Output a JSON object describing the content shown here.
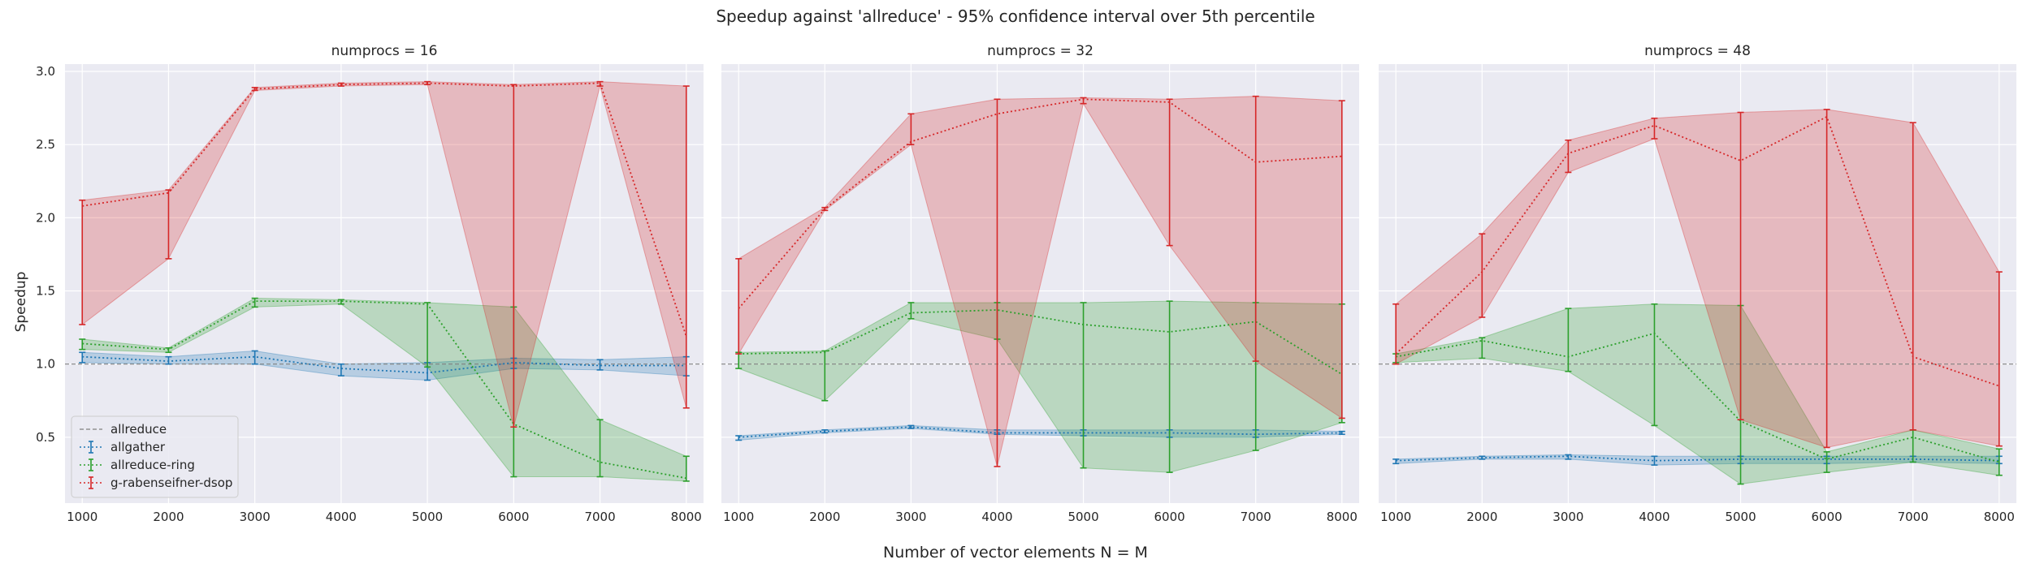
{
  "figure": {
    "title": "Speedup against 'allreduce' - 95% confidence interval over 5th percentile",
    "xlabel": "Number of vector elements N = M",
    "ylabel": "Speedup"
  },
  "colors": {
    "allreduce": "#808080",
    "allgather": "#1f77b4",
    "allreduce-ring": "#2ca02c",
    "g-rabenseifner-dsop": "#d62728",
    "axes_bg": "#eaeaf2",
    "grid": "#ffffff"
  },
  "chart_data": [
    {
      "type": "line",
      "title": "numprocs = 16",
      "x": [
        1000,
        2000,
        3000,
        4000,
        5000,
        6000,
        7000,
        8000
      ],
      "xticks": [
        "1000",
        "2000",
        "3000",
        "4000",
        "5000",
        "6000",
        "7000",
        "8000"
      ],
      "xlim": [
        800,
        8200
      ],
      "ylim": [
        0.05,
        3.05
      ],
      "yticks": [
        "0.5",
        "1.0",
        "1.5",
        "2.0",
        "2.5",
        "3.0"
      ],
      "ytick_values": [
        0.5,
        1.0,
        1.5,
        2.0,
        2.5,
        3.0
      ],
      "show_yticklabels": true,
      "grid": true,
      "legend": {
        "placement": "lower-left",
        "entries": [
          "allreduce",
          "allgather",
          "allreduce-ring",
          "g-rabenseifner-dsop"
        ]
      },
      "baseline": {
        "name": "allreduce",
        "y": 1.0
      },
      "series": [
        {
          "name": "allgather",
          "y": [
            1.05,
            1.02,
            1.05,
            0.97,
            0.94,
            1.01,
            0.99,
            0.99
          ],
          "lower": [
            1.01,
            1.0,
            1.0,
            0.92,
            0.89,
            0.97,
            0.96,
            0.92
          ],
          "upper": [
            1.08,
            1.05,
            1.09,
            1.0,
            1.01,
            1.04,
            1.03,
            1.05
          ]
        },
        {
          "name": "allreduce-ring",
          "y": [
            1.14,
            1.1,
            1.43,
            1.43,
            1.41,
            0.59,
            0.33,
            0.22
          ],
          "lower": [
            1.1,
            1.08,
            1.39,
            1.41,
            0.98,
            0.23,
            0.23,
            0.2
          ],
          "upper": [
            1.17,
            1.11,
            1.45,
            1.44,
            1.42,
            1.39,
            0.62,
            0.37
          ]
        },
        {
          "name": "g-rabenseifner-dsop",
          "y": [
            2.08,
            2.17,
            2.88,
            2.91,
            2.92,
            2.9,
            2.92,
            1.19
          ],
          "lower": [
            1.27,
            1.72,
            2.87,
            2.9,
            2.91,
            0.57,
            2.9,
            0.7
          ],
          "upper": [
            2.12,
            2.19,
            2.89,
            2.92,
            2.93,
            2.91,
            2.93,
            2.9
          ]
        }
      ]
    },
    {
      "type": "line",
      "title": "numprocs = 32",
      "x": [
        1000,
        2000,
        3000,
        4000,
        5000,
        6000,
        7000,
        8000
      ],
      "xticks": [
        "1000",
        "2000",
        "3000",
        "4000",
        "5000",
        "6000",
        "7000",
        "8000"
      ],
      "xlim": [
        800,
        8200
      ],
      "ylim": [
        0.05,
        3.05
      ],
      "yticks": [
        "0.5",
        "1.0",
        "1.5",
        "2.0",
        "2.5",
        "3.0"
      ],
      "ytick_values": [
        0.5,
        1.0,
        1.5,
        2.0,
        2.5,
        3.0
      ],
      "show_yticklabels": false,
      "grid": true,
      "baseline": {
        "name": "allreduce",
        "y": 1.0
      },
      "series": [
        {
          "name": "allgather",
          "y": [
            0.5,
            0.54,
            0.57,
            0.53,
            0.53,
            0.53,
            0.52,
            0.53
          ],
          "lower": [
            0.48,
            0.53,
            0.56,
            0.52,
            0.51,
            0.5,
            0.5,
            0.52
          ],
          "upper": [
            0.51,
            0.55,
            0.58,
            0.55,
            0.55,
            0.55,
            0.55,
            0.54
          ]
        },
        {
          "name": "allreduce-ring",
          "y": [
            1.07,
            1.08,
            1.35,
            1.37,
            1.27,
            1.22,
            1.29,
            0.93
          ],
          "lower": [
            0.97,
            0.75,
            1.31,
            1.17,
            0.29,
            0.26,
            0.41,
            0.6
          ],
          "upper": [
            1.08,
            1.09,
            1.42,
            1.42,
            1.42,
            1.43,
            1.42,
            1.41
          ]
        },
        {
          "name": "g-rabenseifner-dsop",
          "y": [
            1.38,
            2.06,
            2.52,
            2.71,
            2.81,
            2.79,
            2.38,
            2.42
          ],
          "lower": [
            1.07,
            2.05,
            2.5,
            0.3,
            2.78,
            1.81,
            1.02,
            0.63
          ],
          "upper": [
            1.72,
            2.07,
            2.71,
            2.81,
            2.82,
            2.81,
            2.83,
            2.8
          ]
        }
      ]
    },
    {
      "type": "line",
      "title": "numprocs = 48",
      "x": [
        1000,
        2000,
        3000,
        4000,
        5000,
        6000,
        7000,
        8000
      ],
      "xticks": [
        "1000",
        "2000",
        "3000",
        "4000",
        "5000",
        "6000",
        "7000",
        "8000"
      ],
      "xlim": [
        800,
        8200
      ],
      "ylim": [
        0.05,
        3.05
      ],
      "yticks": [
        "0.5",
        "1.0",
        "1.5",
        "2.0",
        "2.5",
        "3.0"
      ],
      "ytick_values": [
        0.5,
        1.0,
        1.5,
        2.0,
        2.5,
        3.0
      ],
      "show_yticklabels": false,
      "grid": true,
      "baseline": {
        "name": "allreduce",
        "y": 1.0
      },
      "series": [
        {
          "name": "allgather",
          "y": [
            0.34,
            0.36,
            0.37,
            0.34,
            0.35,
            0.35,
            0.35,
            0.34
          ],
          "lower": [
            0.32,
            0.35,
            0.35,
            0.31,
            0.32,
            0.32,
            0.33,
            0.32
          ],
          "upper": [
            0.35,
            0.37,
            0.38,
            0.37,
            0.37,
            0.37,
            0.37,
            0.37
          ]
        },
        {
          "name": "allreduce-ring",
          "y": [
            1.05,
            1.16,
            1.05,
            1.21,
            0.61,
            0.35,
            0.5,
            0.33
          ],
          "lower": [
            1.01,
            1.04,
            0.95,
            0.58,
            0.18,
            0.26,
            0.33,
            0.24
          ],
          "upper": [
            1.07,
            1.18,
            1.38,
            1.41,
            1.4,
            0.4,
            0.55,
            0.42
          ]
        },
        {
          "name": "g-rabenseifner-dsop",
          "y": [
            1.07,
            1.63,
            2.44,
            2.63,
            2.39,
            2.69,
            1.05,
            0.85
          ],
          "lower": [
            1.0,
            1.32,
            2.31,
            2.54,
            0.62,
            0.43,
            0.55,
            0.44
          ],
          "upper": [
            1.41,
            1.89,
            2.53,
            2.68,
            2.72,
            2.74,
            2.65,
            1.63
          ]
        }
      ]
    }
  ]
}
